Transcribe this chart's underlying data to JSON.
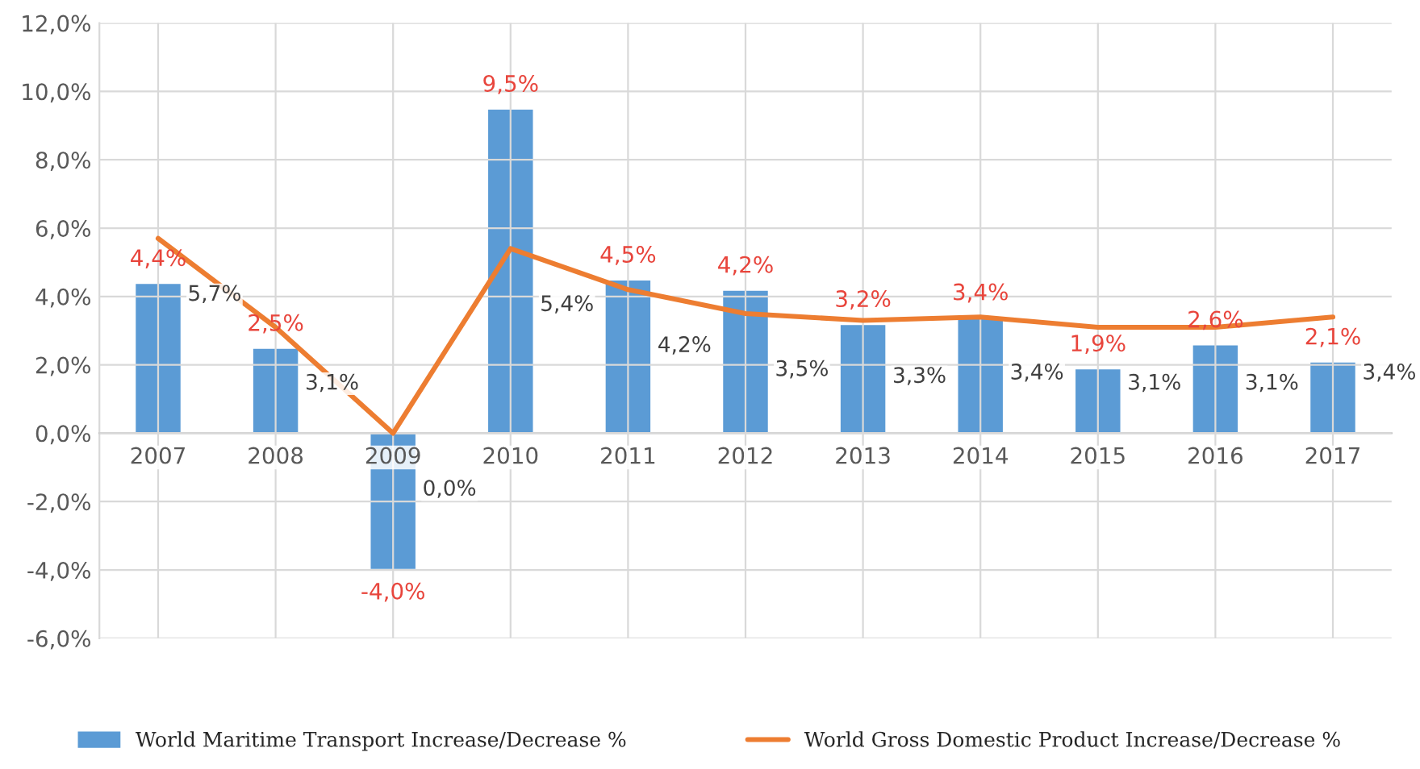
{
  "chart_data": {
    "type": "bar",
    "categories": [
      "2007",
      "2008",
      "2009",
      "2010",
      "2011",
      "2012",
      "2013",
      "2014",
      "2015",
      "2016",
      "2017"
    ],
    "series": [
      {
        "name": "World Maritime Transport Increase/Decrease %",
        "color": "#5b9bd5",
        "values": [
          4.4,
          2.5,
          -4.0,
          9.5,
          4.5,
          4.2,
          3.2,
          3.4,
          1.9,
          2.6,
          2.1
        ],
        "value_labels": [
          "4,4%",
          "2,5%",
          "-4,0%",
          "9,5%",
          "4,5%",
          "4,2%",
          "3,2%",
          "3,4%",
          "1,9%",
          "2,6%",
          "2,1%"
        ]
      },
      {
        "name": "World Gross Domestic Product Increase/Decrease %",
        "type": "line",
        "color": "#ed7d31",
        "values": [
          5.7,
          3.1,
          0.0,
          5.4,
          4.2,
          3.5,
          3.3,
          3.4,
          3.1,
          3.1,
          3.4
        ],
        "value_labels": [
          "5,7%",
          "3,1%",
          "0,0%",
          "5,4%",
          "4,2%",
          "3,5%",
          "3,3%",
          "3,4%",
          "3,1%",
          "3,1%",
          "3,4%"
        ]
      }
    ],
    "ylim": [
      -6,
      12
    ],
    "yticks": [
      {
        "value": -6,
        "label": "-6,0%"
      },
      {
        "value": -4,
        "label": "-4,0%"
      },
      {
        "value": -2,
        "label": "-2,0%"
      },
      {
        "value": 0,
        "label": "0,0%"
      },
      {
        "value": 2,
        "label": "2,0%"
      },
      {
        "value": 4,
        "label": "4,0%"
      },
      {
        "value": 6,
        "label": "6,0%"
      },
      {
        "value": 8,
        "label": "8,0%"
      },
      {
        "value": 10,
        "label": "10,0%"
      },
      {
        "value": 12,
        "label": "12,0%"
      }
    ],
    "grid": true,
    "legend": "bottom",
    "marker": "none",
    "line_style": "solid"
  }
}
